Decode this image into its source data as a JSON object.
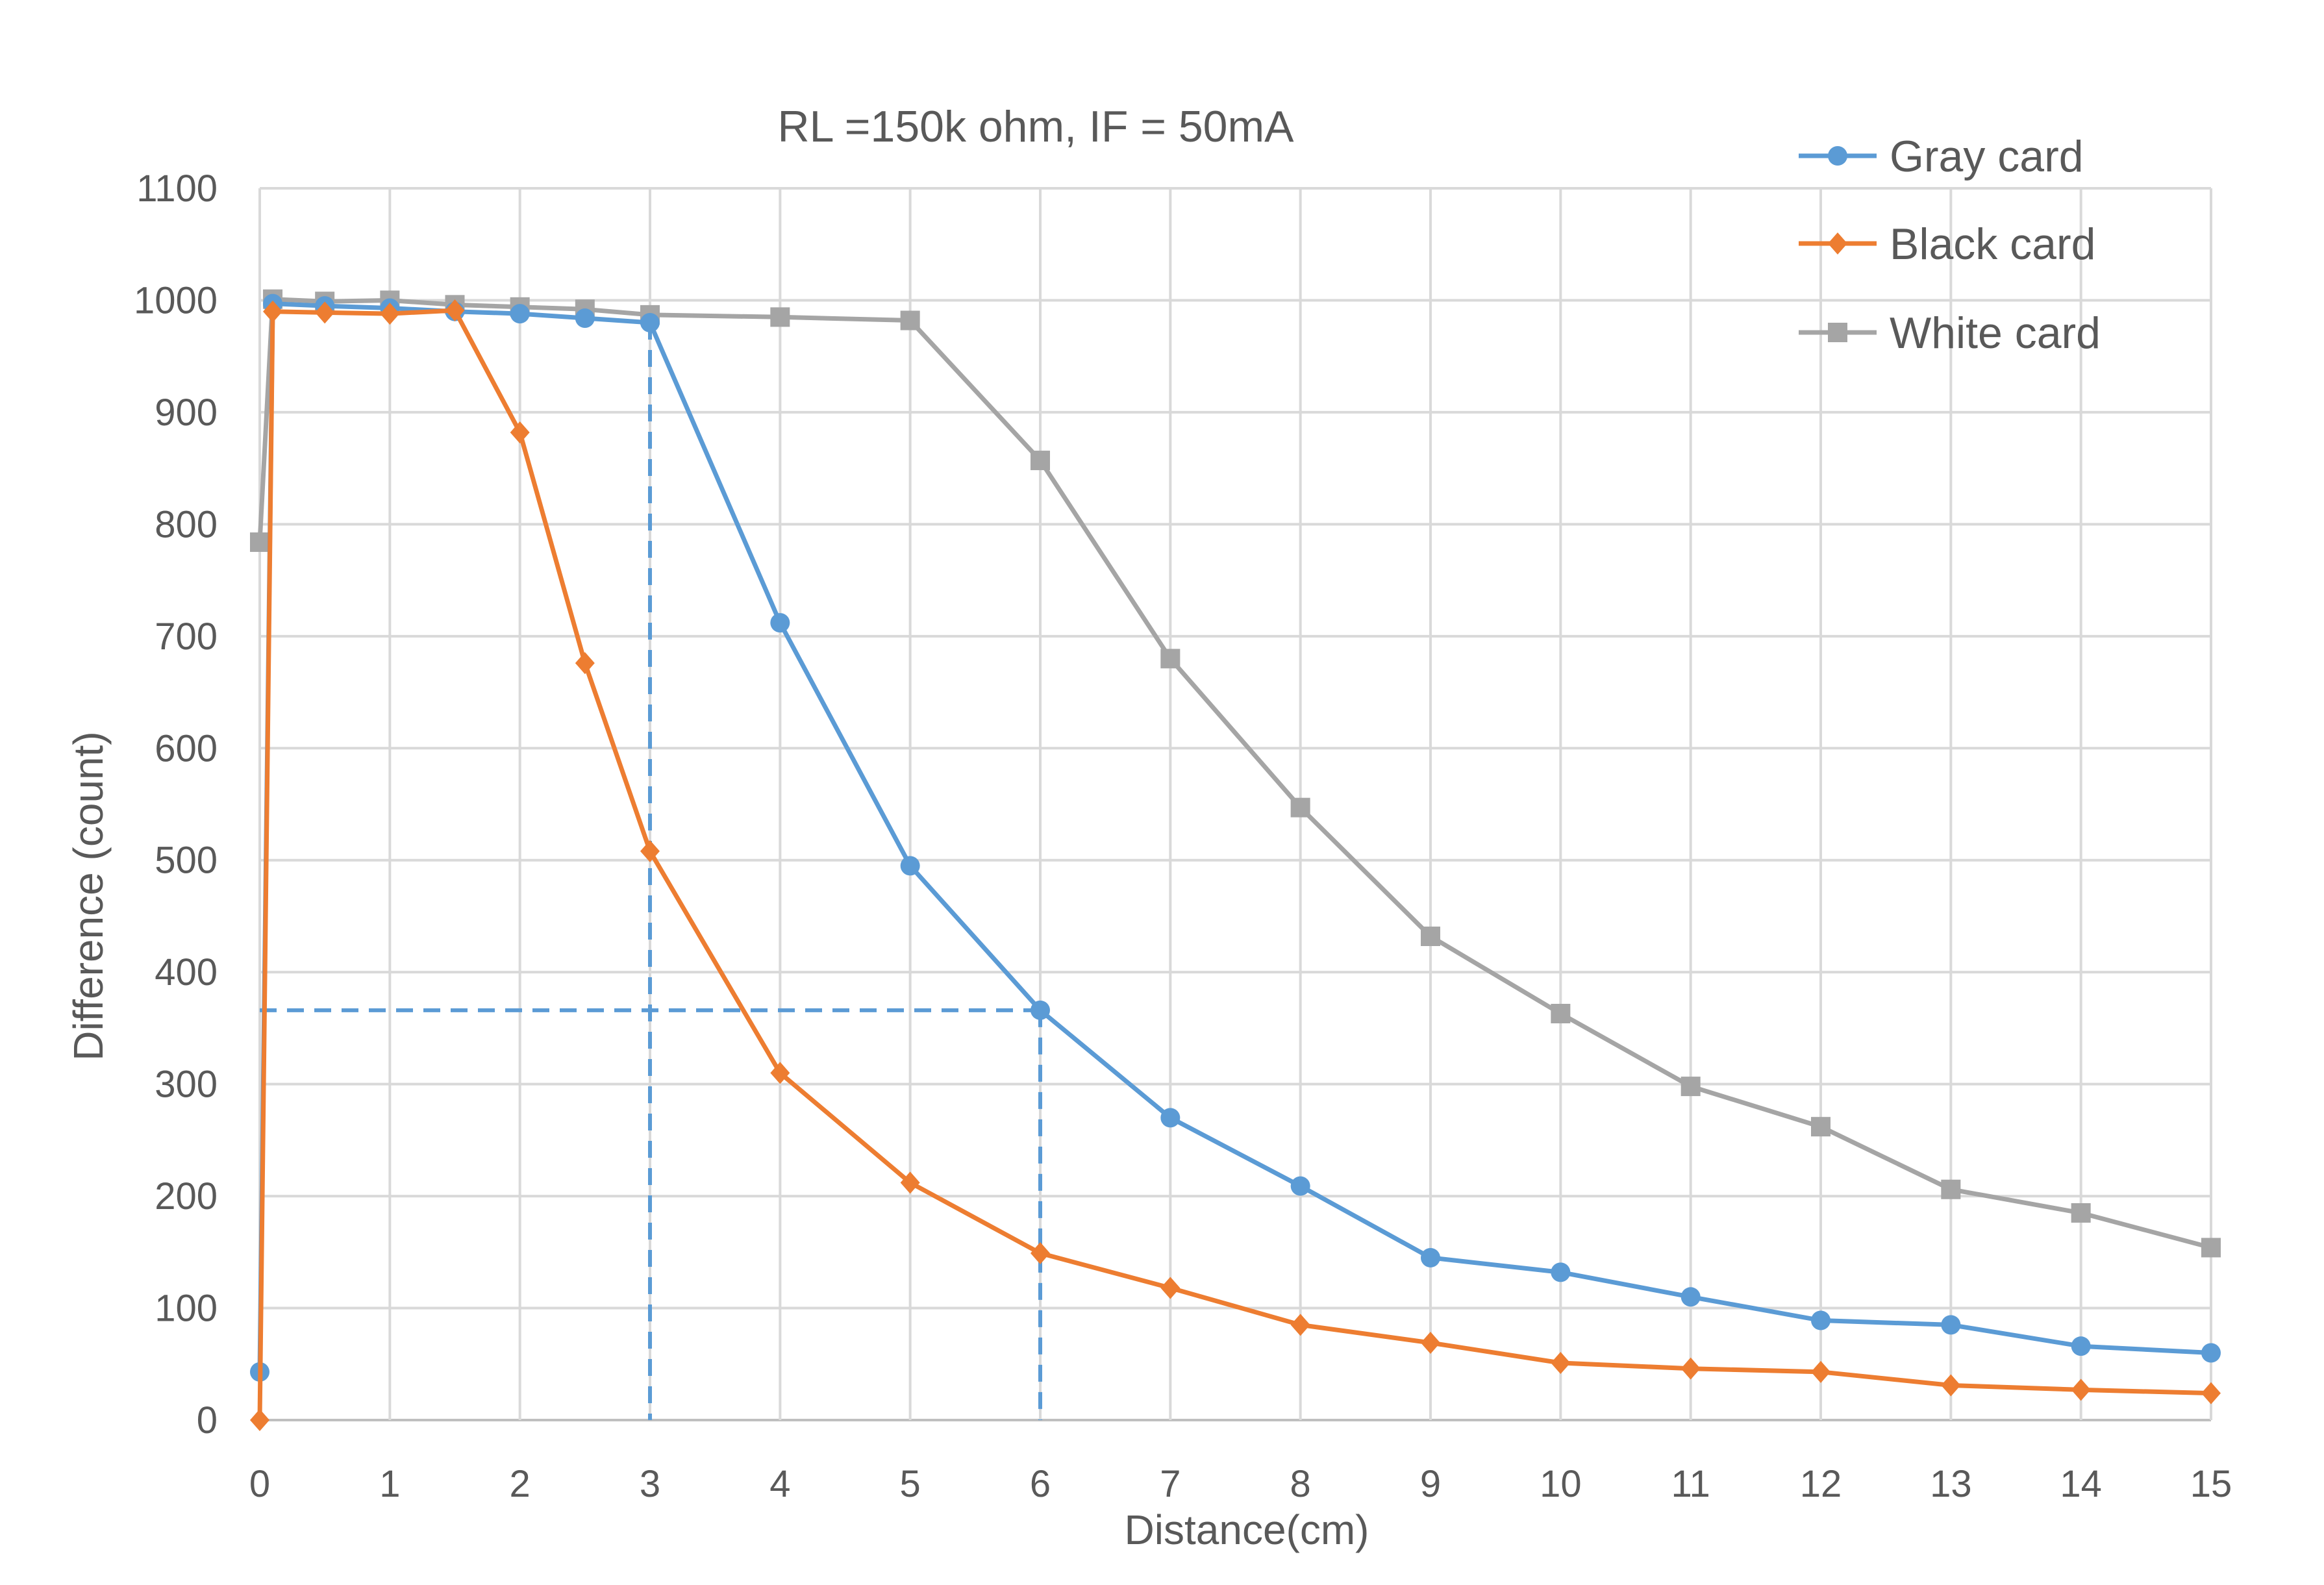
{
  "chart_data": {
    "type": "line",
    "title": "RL =150k ohm, IF = 50mA",
    "xlabel": "Distance(cm)",
    "ylabel": "Difference (count)",
    "xlim": [
      0,
      15
    ],
    "ylim": [
      0,
      1100
    ],
    "x_ticks": [
      "0",
      "1",
      "2",
      "3",
      "4",
      "5",
      "6",
      "7",
      "8",
      "9",
      "10",
      "11",
      "12",
      "13",
      "14",
      "15"
    ],
    "y_ticks": [
      "0",
      "100",
      "200",
      "300",
      "400",
      "500",
      "600",
      "700",
      "800",
      "900",
      "1000",
      "1100"
    ],
    "grid": true,
    "legend_position": "top-right",
    "series": [
      {
        "name": "Gray card",
        "color": "#5B9BD5",
        "marker": "circle",
        "points": [
          [
            0,
            43
          ],
          [
            0.1,
            997
          ],
          [
            0.5,
            995
          ],
          [
            1,
            993
          ],
          [
            1.5,
            990
          ],
          [
            2,
            988
          ],
          [
            2.5,
            984
          ],
          [
            3,
            980
          ],
          [
            4,
            712
          ],
          [
            5,
            495
          ],
          [
            6,
            366
          ],
          [
            7,
            270
          ],
          [
            8,
            209
          ],
          [
            9,
            145
          ],
          [
            10,
            132
          ],
          [
            11,
            110
          ],
          [
            12,
            89
          ],
          [
            13,
            85
          ],
          [
            14,
            66
          ],
          [
            15,
            60
          ]
        ]
      },
      {
        "name": "Black card",
        "color": "#ED7D31",
        "marker": "diamond",
        "points": [
          [
            0,
            0
          ],
          [
            0.1,
            990
          ],
          [
            0.5,
            989
          ],
          [
            1,
            988
          ],
          [
            1.5,
            991
          ],
          [
            2,
            882
          ],
          [
            2.5,
            676
          ],
          [
            3,
            508
          ],
          [
            4,
            310
          ],
          [
            5,
            212
          ],
          [
            6,
            149
          ],
          [
            7,
            118
          ],
          [
            8,
            85
          ],
          [
            9,
            69
          ],
          [
            10,
            51
          ],
          [
            11,
            46
          ],
          [
            12,
            43
          ],
          [
            13,
            31
          ],
          [
            14,
            27
          ],
          [
            15,
            24
          ]
        ]
      },
      {
        "name": "White card",
        "color": "#A5A5A5",
        "marker": "square",
        "points": [
          [
            0,
            784
          ],
          [
            0.1,
            1001
          ],
          [
            0.5,
            999
          ],
          [
            1,
            1000
          ],
          [
            1.5,
            996
          ],
          [
            2,
            994
          ],
          [
            2.5,
            992
          ],
          [
            3,
            987
          ],
          [
            4,
            985
          ],
          [
            5,
            982
          ],
          [
            6,
            857
          ],
          [
            7,
            680
          ],
          [
            8,
            547
          ],
          [
            9,
            432
          ],
          [
            10,
            363
          ],
          [
            11,
            298
          ],
          [
            12,
            262
          ],
          [
            13,
            206
          ],
          [
            14,
            185
          ],
          [
            15,
            154
          ]
        ]
      }
    ],
    "reference_lines": {
      "color": "#5B9BD5",
      "style": "dashed",
      "vertical_x": [
        3,
        6
      ],
      "horizontal_y": 366,
      "horizontal_to_x": 6
    }
  }
}
